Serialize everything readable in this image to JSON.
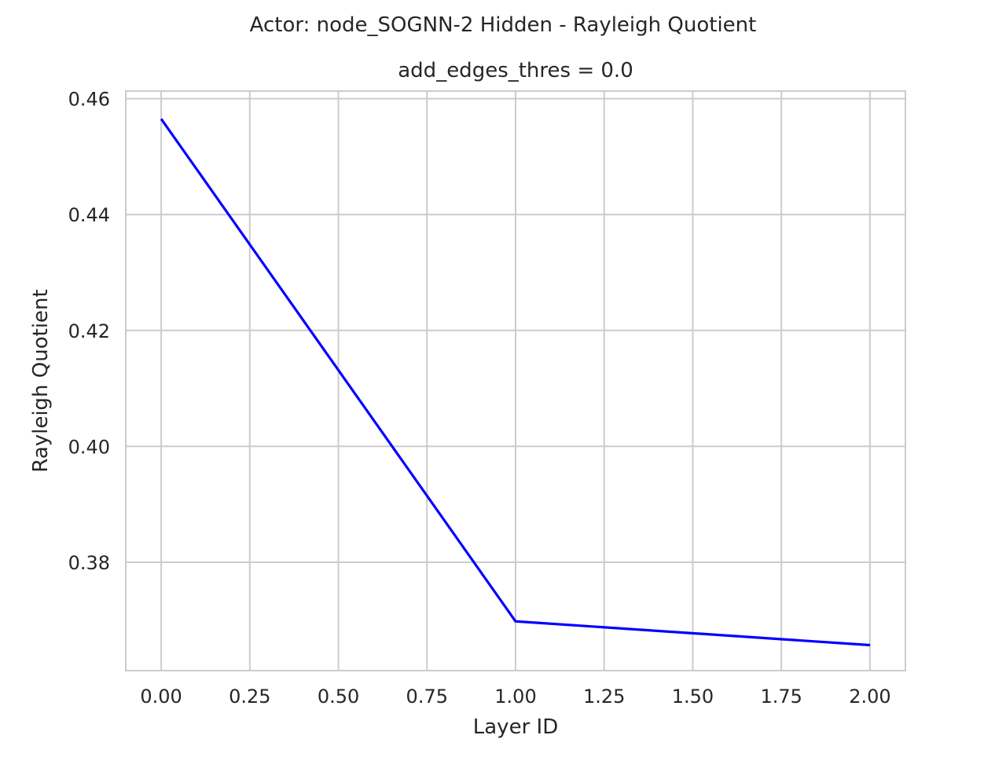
{
  "figure": {
    "suptitle": "Actor: node_SOGNN-2 Hidden - Rayleigh Quotient"
  },
  "chart_data": {
    "type": "line",
    "title": "add_edges_thres = 0.0",
    "xlabel": "Layer ID",
    "ylabel": "Rayleigh Quotient",
    "xlim": [
      -0.1,
      2.1
    ],
    "ylim": [
      0.3613,
      0.4613
    ],
    "xticks": [
      0.0,
      0.25,
      0.5,
      0.75,
      1.0,
      1.25,
      1.5,
      1.75,
      2.0
    ],
    "xtick_labels": [
      "0.00",
      "0.25",
      "0.50",
      "0.75",
      "1.00",
      "1.25",
      "1.50",
      "1.75",
      "2.00"
    ],
    "yticks": [
      0.38,
      0.4,
      0.42,
      0.44,
      0.46
    ],
    "ytick_labels": [
      "0.38",
      "0.40",
      "0.42",
      "0.44",
      "0.46"
    ],
    "grid": true,
    "series": [
      {
        "color": "#0000ff",
        "x": [
          0,
          1,
          2
        ],
        "y": [
          0.4565,
          0.3698,
          0.3657
        ]
      }
    ],
    "colors": {
      "grid": "#cccccc",
      "spine": "#cccccc",
      "text": "#262626"
    }
  }
}
